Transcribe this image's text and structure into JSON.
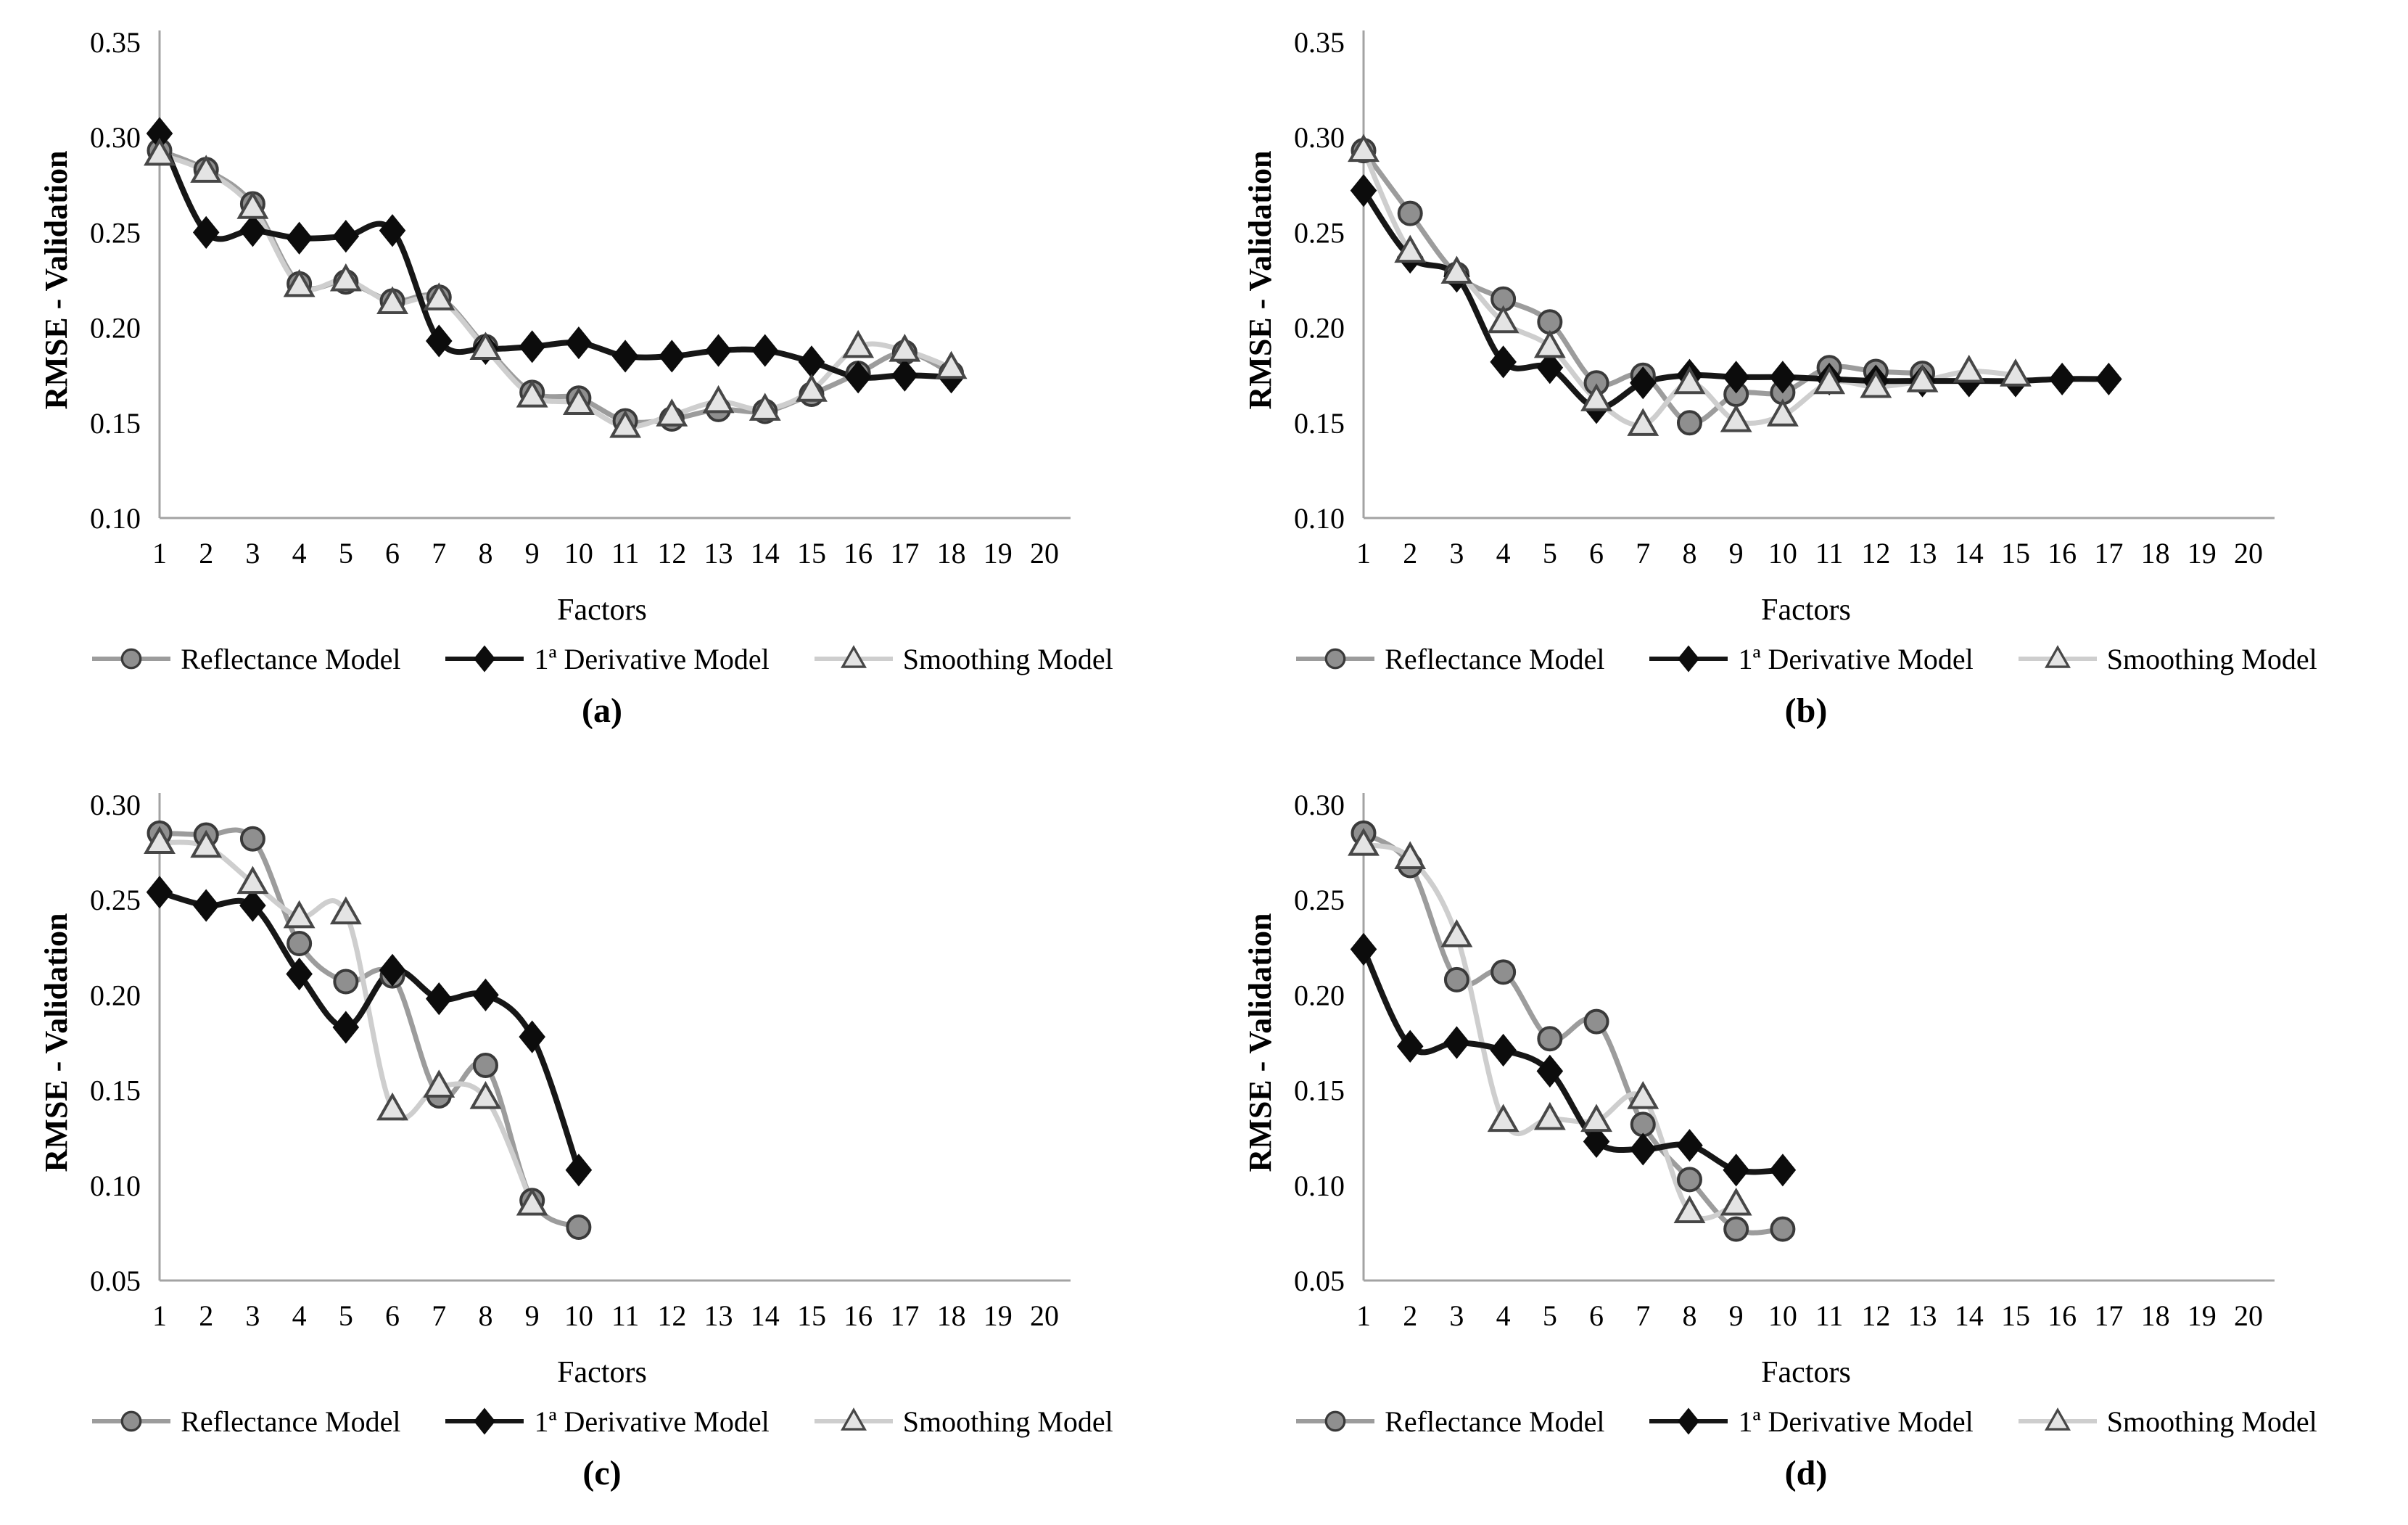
{
  "figure": {
    "background": "#ffffff",
    "text_color": "#000000",
    "axis_color": "#a3a3a3",
    "xlabel": "Factors",
    "ylabel": "RMSE - Validation",
    "series_styles": {
      "reflectance": {
        "marker": "circle",
        "line": "#9c9c9c",
        "fill": "#8f8f8f",
        "stroke": "#3a3a3a"
      },
      "derivative": {
        "marker": "diamond",
        "line": "#161616",
        "fill": "#0c0c0c",
        "stroke": "#0c0c0c"
      },
      "smoothing": {
        "marker": "triangle",
        "line": "#cecece",
        "fill": "#e4e4e4",
        "stroke": "#474747"
      }
    }
  },
  "chart_data": [
    {
      "id": "a",
      "caption": "(a)",
      "type": "line",
      "xlabel": "Factors",
      "ylabel": "RMSE - Validation",
      "xlim": [
        1,
        20
      ],
      "ylim": [
        0.1,
        0.35
      ],
      "y_ticks": [
        0.1,
        0.15,
        0.2,
        0.25,
        0.3,
        0.35
      ],
      "grid": false,
      "legend_position": "bottom",
      "series": [
        {
          "key": "reflectance",
          "name": "Reflectance Model",
          "values": [
            0.293,
            0.283,
            0.265,
            0.223,
            0.224,
            0.214,
            0.216,
            0.19,
            0.166,
            0.163,
            0.151,
            0.152,
            0.157,
            0.156,
            0.165,
            0.176,
            0.187,
            0.176
          ]
        },
        {
          "key": "derivative",
          "name": "1ª Derivative Model",
          "values": [
            0.302,
            0.25,
            0.251,
            0.247,
            0.248,
            0.251,
            0.193,
            0.189,
            0.19,
            0.192,
            0.185,
            0.185,
            0.188,
            0.188,
            0.182,
            0.174,
            0.175,
            0.174
          ]
        },
        {
          "key": "smoothing",
          "name": "Smoothing Model",
          "values": [
            0.291,
            0.282,
            0.263,
            0.222,
            0.225,
            0.213,
            0.215,
            0.189,
            0.164,
            0.16,
            0.148,
            0.154,
            0.161,
            0.157,
            0.167,
            0.19,
            0.188,
            0.179
          ]
        }
      ]
    },
    {
      "id": "b",
      "caption": "(b)",
      "type": "line",
      "xlabel": "Factors",
      "ylabel": "RMSE - Validation",
      "xlim": [
        1,
        20
      ],
      "ylim": [
        0.1,
        0.35
      ],
      "y_ticks": [
        0.1,
        0.15,
        0.2,
        0.25,
        0.3,
        0.35
      ],
      "grid": false,
      "legend_position": "bottom",
      "series": [
        {
          "key": "reflectance",
          "name": "Reflectance Model",
          "values": [
            0.293,
            0.26,
            0.228,
            0.215,
            0.203,
            0.171,
            0.175,
            0.15,
            0.165,
            0.166,
            0.179,
            0.177,
            0.176
          ]
        },
        {
          "key": "derivative",
          "name": "1ª Derivative Model",
          "values": [
            0.272,
            0.237,
            0.227,
            0.182,
            0.179,
            0.158,
            0.171,
            0.175,
            0.174,
            0.174,
            0.173,
            0.172,
            0.172,
            0.172,
            0.172,
            0.173,
            0.173
          ]
        },
        {
          "key": "smoothing",
          "name": "Smoothing Model",
          "values": [
            0.293,
            0.24,
            0.229,
            0.203,
            0.19,
            0.162,
            0.149,
            0.171,
            0.151,
            0.154,
            0.171,
            0.169,
            0.172,
            0.177,
            0.175
          ]
        }
      ]
    },
    {
      "id": "c",
      "caption": "(c)",
      "type": "line",
      "xlabel": "Factors",
      "ylabel": "RMSE - Validation",
      "xlim": [
        1,
        20
      ],
      "ylim": [
        0.05,
        0.3
      ],
      "y_ticks": [
        0.05,
        0.1,
        0.15,
        0.2,
        0.25,
        0.3
      ],
      "grid": false,
      "legend_position": "bottom",
      "series": [
        {
          "key": "reflectance",
          "name": "Reflectance Model",
          "values": [
            0.285,
            0.284,
            0.282,
            0.227,
            0.207,
            0.21,
            0.147,
            0.163,
            0.092,
            0.078
          ]
        },
        {
          "key": "derivative",
          "name": "1ª Derivative Model",
          "values": [
            0.254,
            0.247,
            0.247,
            0.211,
            0.183,
            0.213,
            0.198,
            0.2,
            0.178,
            0.108
          ]
        },
        {
          "key": "smoothing",
          "name": "Smoothing Model",
          "values": [
            0.28,
            0.278,
            0.259,
            0.241,
            0.243,
            0.14,
            0.152,
            0.146,
            0.09
          ]
        }
      ]
    },
    {
      "id": "d",
      "caption": "(d)",
      "type": "line",
      "xlabel": "Factors",
      "ylabel": "RMSE - Validation",
      "xlim": [
        1,
        20
      ],
      "ylim": [
        0.05,
        0.3
      ],
      "y_ticks": [
        0.05,
        0.1,
        0.15,
        0.2,
        0.25,
        0.3
      ],
      "grid": false,
      "legend_position": "bottom",
      "series": [
        {
          "key": "reflectance",
          "name": "Reflectance Model",
          "values": [
            0.285,
            0.268,
            0.208,
            0.212,
            0.177,
            0.186,
            0.132,
            0.103,
            0.077,
            0.077
          ]
        },
        {
          "key": "derivative",
          "name": "1ª Derivative Model",
          "values": [
            0.224,
            0.173,
            0.175,
            0.171,
            0.16,
            0.123,
            0.119,
            0.121,
            0.108,
            0.108
          ]
        },
        {
          "key": "smoothing",
          "name": "Smoothing Model",
          "values": [
            0.279,
            0.272,
            0.231,
            0.134,
            0.135,
            0.134,
            0.146,
            0.086,
            0.09
          ]
        }
      ]
    }
  ]
}
